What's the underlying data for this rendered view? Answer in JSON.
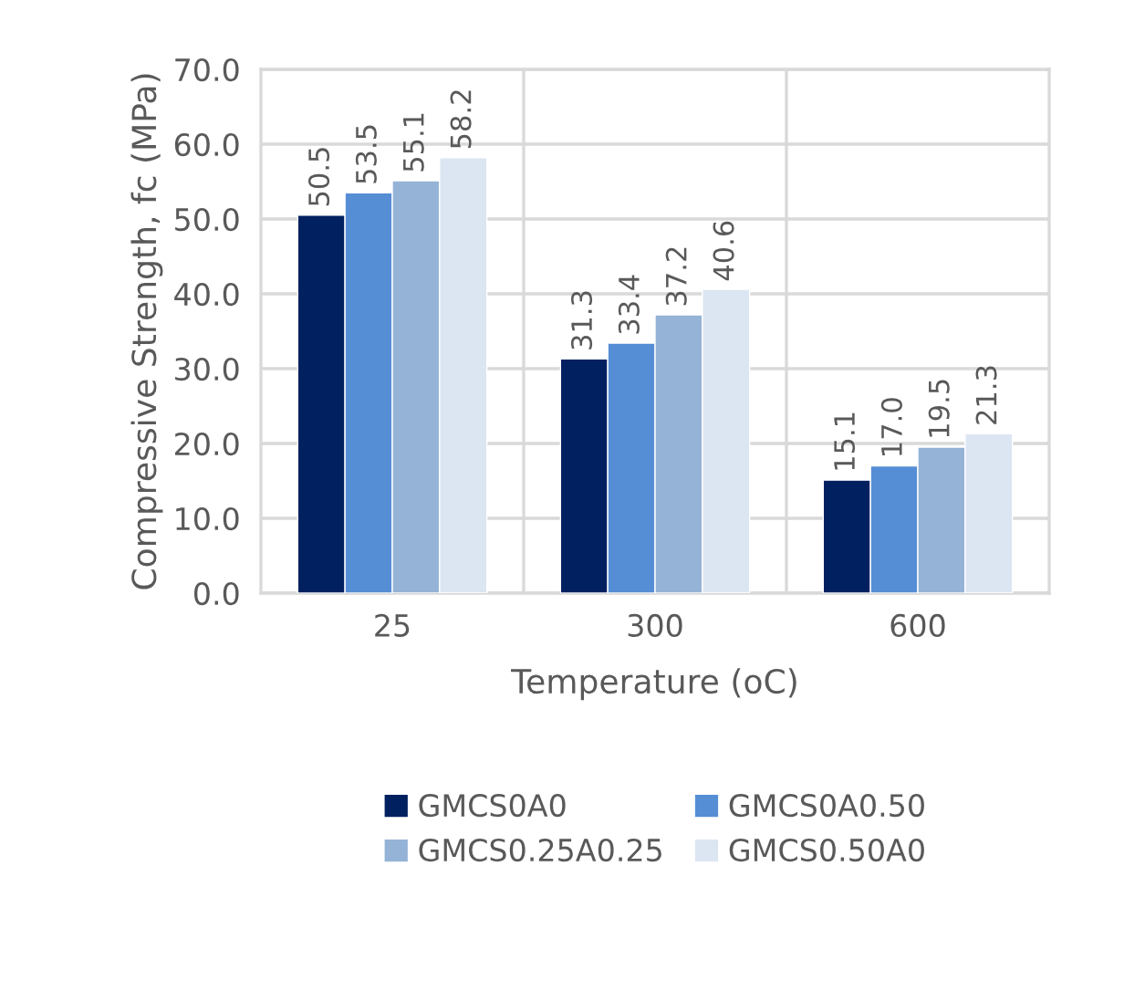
{
  "chart_data": {
    "type": "bar",
    "xlabel": "Temperature (oC)",
    "ylabel": "Compressive Strength, fc (MPa)",
    "categories": [
      "25",
      "300",
      "600"
    ],
    "series": [
      {
        "name": "GMCS0A0",
        "color": "#002060",
        "values": [
          50.5,
          31.3,
          15.1
        ],
        "value_labels": [
          "50.5",
          "31.3",
          "15.1"
        ]
      },
      {
        "name": "GMCS0A0.50",
        "color": "#558ed5",
        "values": [
          53.5,
          33.4,
          17.0
        ],
        "value_labels": [
          "53.5",
          "33.4",
          "17.0"
        ]
      },
      {
        "name": "GMCS0.25A0.25",
        "color": "#95b3d7",
        "values": [
          55.1,
          37.2,
          19.5
        ],
        "value_labels": [
          "55.1",
          "37.2",
          "19.5"
        ]
      },
      {
        "name": "GMCS0.50A0",
        "color": "#dce6f2",
        "values": [
          58.2,
          40.6,
          21.3
        ],
        "value_labels": [
          "58.2",
          "40.6",
          "21.3"
        ]
      }
    ],
    "ylim": [
      0,
      70
    ],
    "yticks": [
      {
        "value": 0,
        "label": "0.0"
      },
      {
        "value": 10,
        "label": "10.0"
      },
      {
        "value": 20,
        "label": "20.0"
      },
      {
        "value": 30,
        "label": "30.0"
      },
      {
        "value": 40,
        "label": "40.0"
      },
      {
        "value": 50,
        "label": "50.0"
      },
      {
        "value": 60,
        "label": "60.0"
      },
      {
        "value": 70,
        "label": "70.0"
      }
    ],
    "grid": true,
    "legend": "bottom"
  }
}
